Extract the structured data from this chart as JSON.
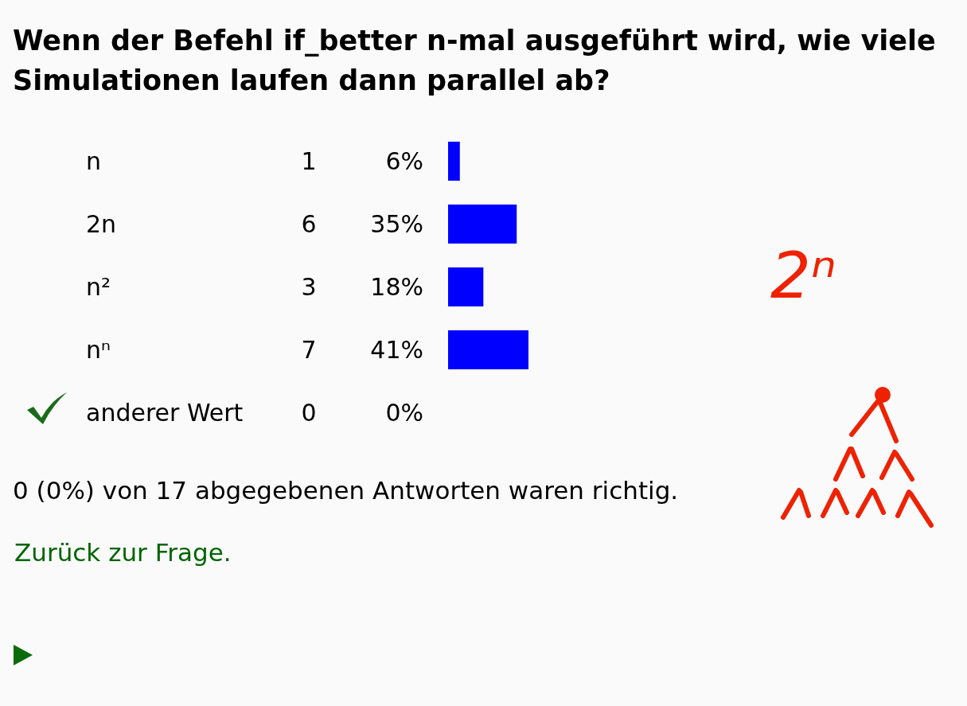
{
  "chart_data": {
    "type": "bar",
    "orientation": "horizontal",
    "title": "Wenn der Befehl if_better n-mal ausgeführt wird, wie viele Simulationen laufen dann parallel ab?",
    "categories": [
      "n",
      "2n",
      "n²",
      "nⁿ",
      "anderer Wert"
    ],
    "values": [
      6,
      35,
      18,
      41,
      0
    ],
    "color": "#0000ff",
    "value_labels": [
      "6%",
      "35%",
      "18%",
      "41%",
      "0%"
    ],
    "annotations": [
      "0 (0%) von 17 abgegebenen Antworten waren richtig.",
      "Zurück zur Frage.",
      "2ⁿ",
      "1",
      "6",
      "3",
      "7",
      "0"
    ]
  }
}
